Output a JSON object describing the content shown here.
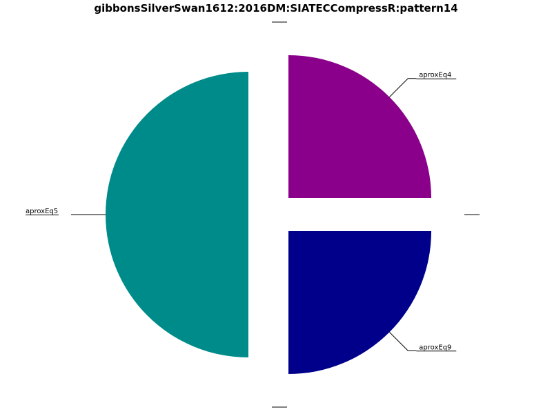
{
  "chart_data": {
    "type": "pie",
    "title": "gibbonsSilverSwan1612:2016DM:SIATECCompressR:pattern14",
    "slices": [
      {
        "label": "",
        "value": 0,
        "color": "#ffffff",
        "exploded": true
      },
      {
        "label": "aproxEq4",
        "value": 25,
        "color": "#8b008b",
        "exploded": true
      },
      {
        "label": "",
        "value": 0,
        "color": "#ffffff",
        "exploded": true
      },
      {
        "label": "aproxEq9",
        "value": 25,
        "color": "#00008b",
        "exploded": true
      },
      {
        "label": "",
        "value": 0,
        "color": "#ffffff",
        "exploded": true
      },
      {
        "label": "aproxEq5",
        "value": 50,
        "color": "#008b8b",
        "exploded": true
      }
    ],
    "start_angle_deg": 90,
    "direction": "clockwise",
    "legend": "none"
  }
}
